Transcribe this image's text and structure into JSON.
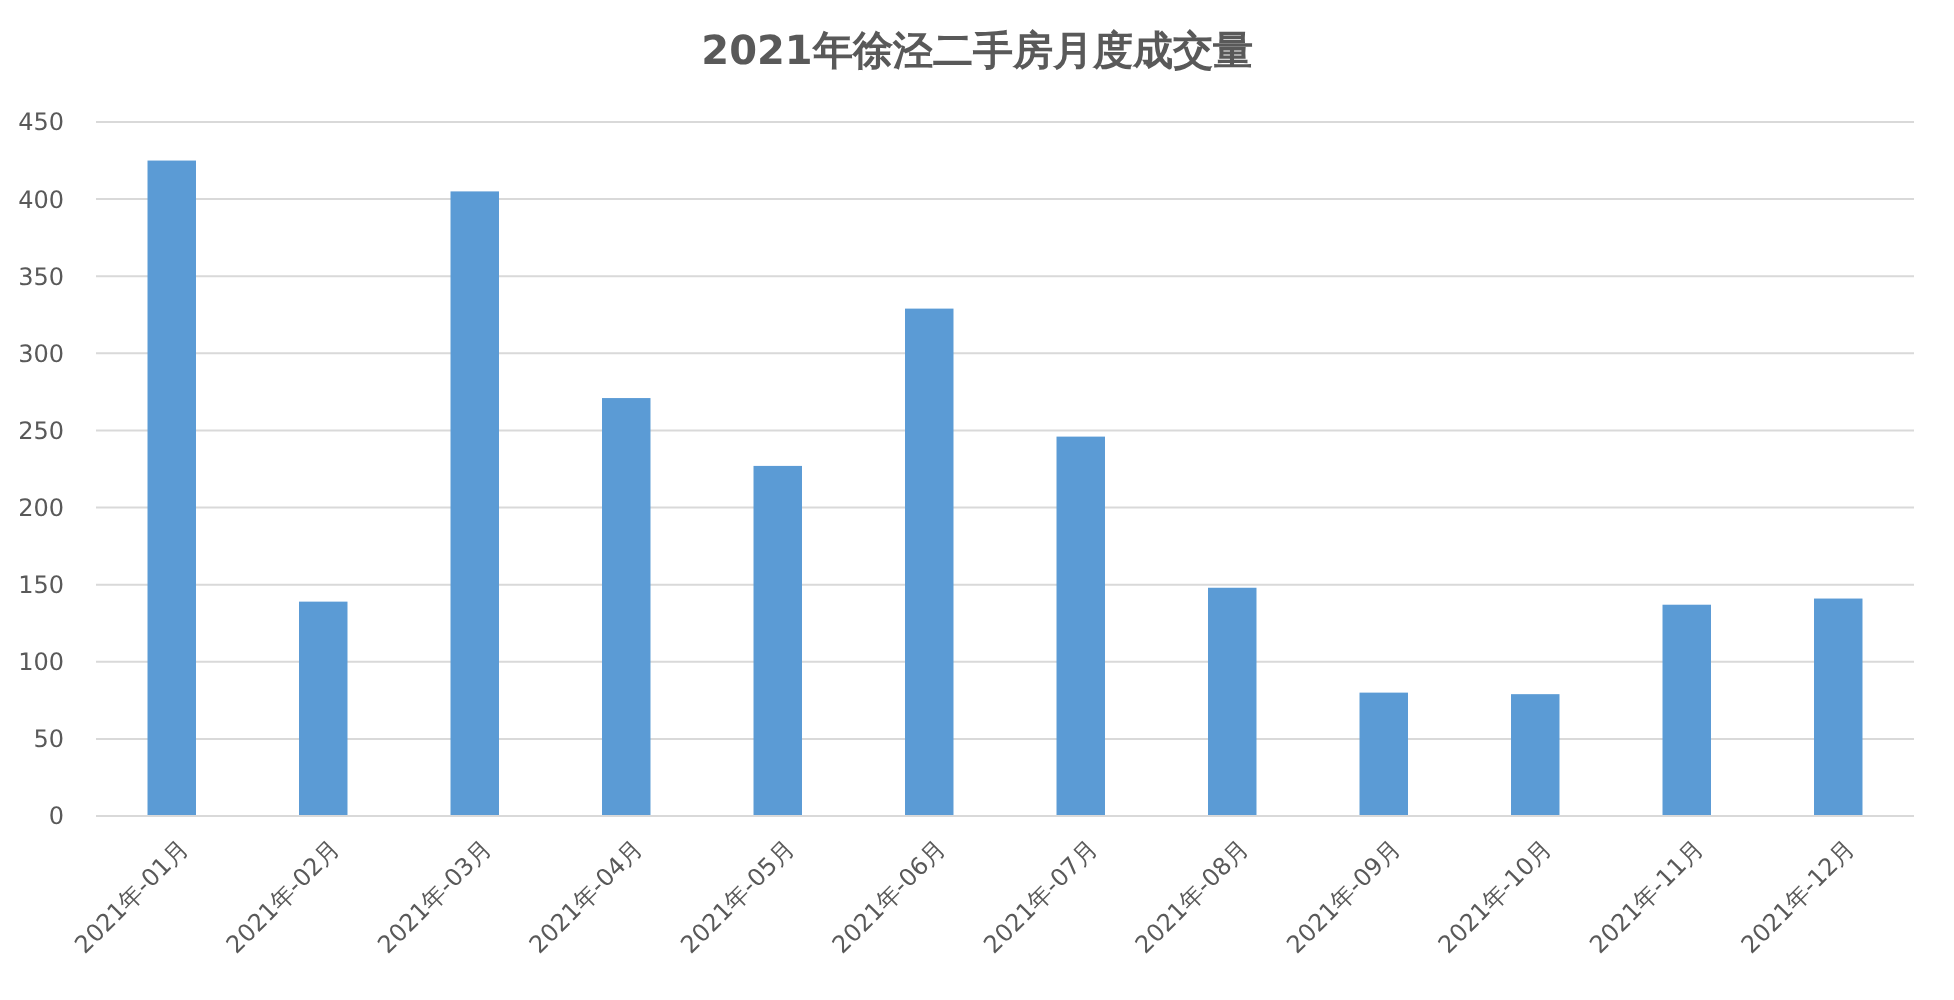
{
  "chart_data": {
    "type": "bar",
    "title": "2021年徐泾二手房月度成交量",
    "categories": [
      "2021年-01月",
      "2021年-02月",
      "2021年-03月",
      "2021年-04月",
      "2021年-05月",
      "2021年-06月",
      "2021年-07月",
      "2021年-08月",
      "2021年-09月",
      "2021年-10月",
      "2021年-11月",
      "2021年-12月"
    ],
    "values": [
      425,
      139,
      405,
      271,
      227,
      329,
      246,
      148,
      80,
      79,
      137,
      141
    ],
    "color": "#5b9bd5",
    "ylim": [
      0,
      450
    ],
    "yticks": [
      0,
      50,
      100,
      150,
      200,
      250,
      300,
      350,
      400,
      450
    ],
    "grid": "y"
  }
}
